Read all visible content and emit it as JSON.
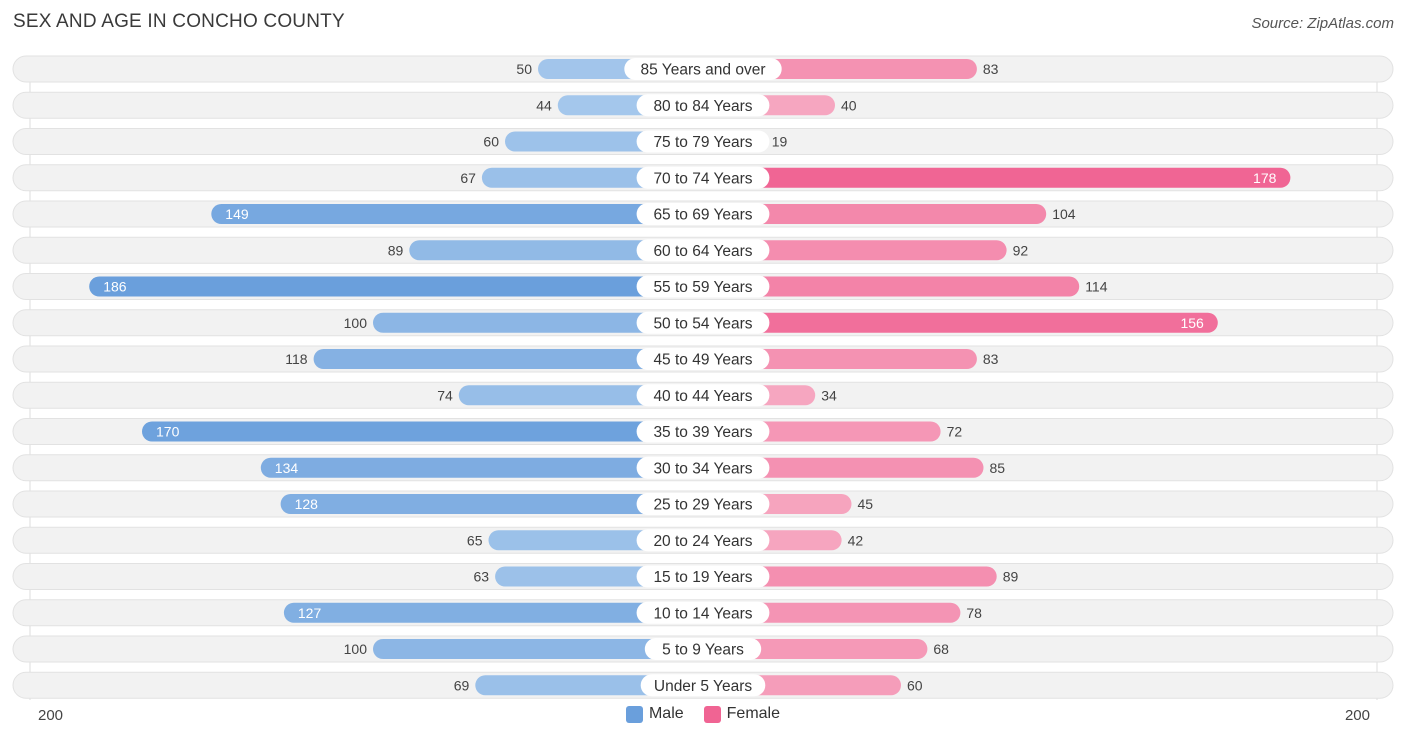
{
  "title": "SEX AND AGE IN CONCHO COUNTY",
  "source": "Source: ZipAtlas.com",
  "colors": {
    "male_light": "#a6c8ec",
    "male_dark": "#6a9fdc",
    "female_light": "#f6a6c0",
    "female_dark": "#f06493",
    "row_bg": "#f2f2f2",
    "row_border": "#e2e2e2"
  },
  "chart_data": {
    "type": "bar",
    "orientation": "horizontal-diverging",
    "title": "SEX AND AGE IN CONCHO COUNTY",
    "xlim": [
      0,
      200
    ],
    "axis_labels": {
      "left": "200",
      "right": "200"
    },
    "legend": [
      {
        "name": "Male",
        "color": "#6a9fdc"
      },
      {
        "name": "Female",
        "color": "#f06493"
      }
    ],
    "categories": [
      "85 Years and over",
      "80 to 84 Years",
      "75 to 79 Years",
      "70 to 74 Years",
      "65 to 69 Years",
      "60 to 64 Years",
      "55 to 59 Years",
      "50 to 54 Years",
      "45 to 49 Years",
      "40 to 44 Years",
      "35 to 39 Years",
      "30 to 34 Years",
      "25 to 29 Years",
      "20 to 24 Years",
      "15 to 19 Years",
      "10 to 14 Years",
      "5 to 9 Years",
      "Under 5 Years"
    ],
    "series": [
      {
        "name": "Male",
        "values": [
          50,
          44,
          60,
          67,
          149,
          89,
          186,
          100,
          118,
          74,
          170,
          134,
          128,
          65,
          63,
          127,
          100,
          69
        ]
      },
      {
        "name": "Female",
        "values": [
          83,
          40,
          19,
          178,
          104,
          92,
          114,
          156,
          83,
          34,
          72,
          85,
          45,
          42,
          89,
          78,
          68,
          60
        ]
      }
    ]
  }
}
